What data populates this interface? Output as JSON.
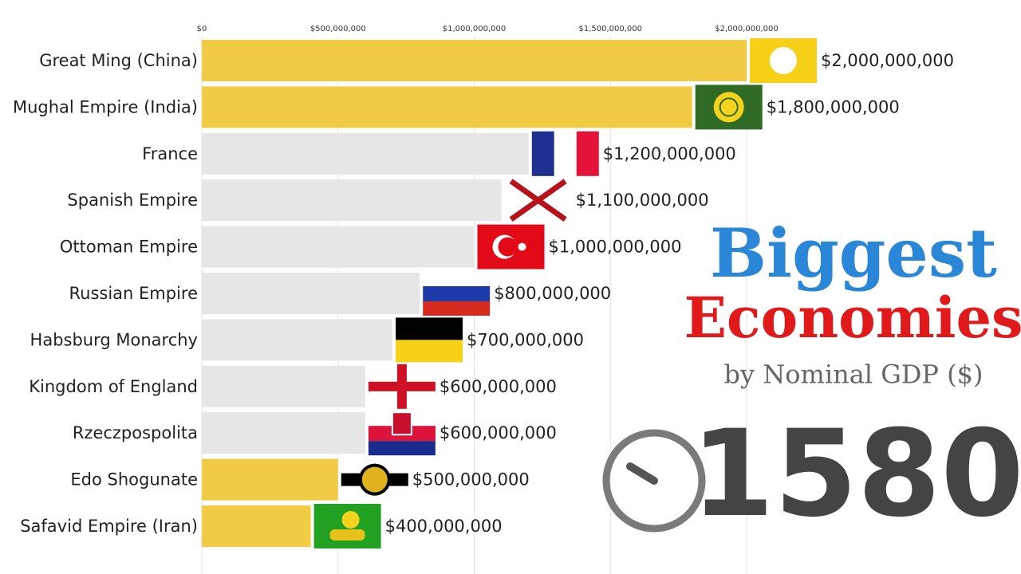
{
  "chart_data": {
    "type": "bar",
    "orientation": "horizontal",
    "title": [
      "Biggest",
      "Economies"
    ],
    "subtitle": "by Nominal GDP ($)",
    "year": 1580,
    "categories": [
      "Great Ming (China)",
      "Mughal Empire (India)",
      "France",
      "Spanish Empire",
      "Ottoman Empire",
      "Russian Empire",
      "Habsburg Monarchy",
      "Kingdom of England",
      "Rzeczpospolita",
      "Edo Shogunate",
      "Safavid Empire (Iran)"
    ],
    "values": [
      2000000000,
      1800000000,
      1200000000,
      1100000000,
      1000000000,
      800000000,
      700000000,
      600000000,
      600000000,
      500000000,
      400000000
    ],
    "value_labels": [
      "$2,000,000,000",
      "$1,800,000,000",
      "$1,200,000,000",
      "$1,100,000,000",
      "$1,000,000,000",
      "$800,000,000",
      "$700,000,000",
      "$600,000,000",
      "$600,000,000",
      "$500,000,000",
      "$400,000,000"
    ],
    "colors": [
      "#f2cb45",
      "#f2cb45",
      "#e6e6e6",
      "#e6e6e6",
      "#e6e6e6",
      "#e6e6e6",
      "#e6e6e6",
      "#e6e6e6",
      "#e6e6e6",
      "#f2cb45",
      "#f2cb45"
    ],
    "xlim": [
      0,
      2000000000
    ],
    "xticks": [
      {
        "value": 0,
        "label": "$0"
      },
      {
        "value": 500000000,
        "label": "$500,000,000"
      },
      {
        "value": 1000000000,
        "label": "$1,000,000,000"
      },
      {
        "value": 1500000000,
        "label": "$1,500,000,000"
      },
      {
        "value": 2000000000,
        "label": "$2,000,000,000"
      }
    ],
    "grid": true
  }
}
